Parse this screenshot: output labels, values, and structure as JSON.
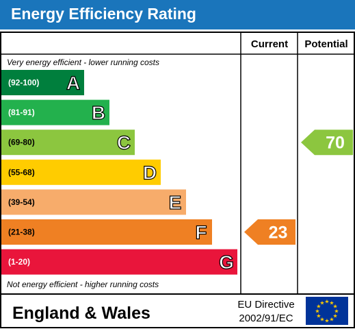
{
  "header": {
    "title": "Energy Efficiency Rating"
  },
  "columns": {
    "current": "Current",
    "potential": "Potential"
  },
  "notes": {
    "top": "Very energy efficient - lower running costs",
    "bottom": "Not energy efficient - higher running costs"
  },
  "footer": {
    "region": "England & Wales",
    "directive_line1": "EU Directive",
    "directive_line2": "2002/91/EC"
  },
  "chart_data": {
    "type": "bar",
    "title": "Energy Efficiency Rating",
    "bands": [
      {
        "letter": "A",
        "range": "(92-100)",
        "color": "#007f3d"
      },
      {
        "letter": "B",
        "range": "(81-91)",
        "color": "#23b14d"
      },
      {
        "letter": "C",
        "range": "(69-80)",
        "color": "#8cc63f"
      },
      {
        "letter": "D",
        "range": "(55-68)",
        "color": "#ffcc00"
      },
      {
        "letter": "E",
        "range": "(39-54)",
        "color": "#f7ac6b"
      },
      {
        "letter": "F",
        "range": "(21-38)",
        "color": "#ef8023"
      },
      {
        "letter": "G",
        "range": "(1-20)",
        "color": "#e9153b"
      }
    ],
    "current": {
      "value": "23",
      "band": "F",
      "color": "#ef8023"
    },
    "potential": {
      "value": "70",
      "band": "C",
      "color": "#8cc63f"
    }
  }
}
